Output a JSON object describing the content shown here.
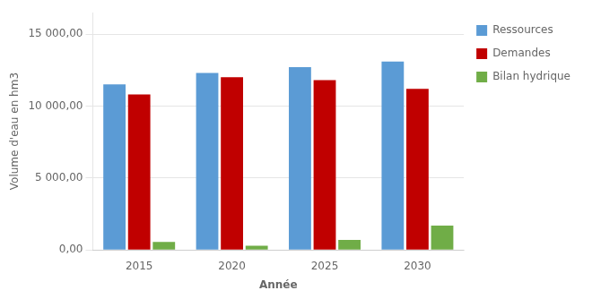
{
  "chart_data": {
    "type": "bar",
    "categories": [
      "2015",
      "2020",
      "2025",
      "2030"
    ],
    "series": [
      {
        "name": "Ressources",
        "color": "#5B9BD5",
        "values": [
          11500,
          12300,
          12700,
          13100
        ]
      },
      {
        "name": "Demandes",
        "color": "#C00000",
        "values": [
          10800,
          12000,
          11800,
          11200
        ]
      },
      {
        "name": "Bilan hydrique",
        "color": "#70AD47",
        "values": [
          550,
          300,
          700,
          1700
        ]
      }
    ],
    "xlabel": "Année",
    "ylabel": "Volume d'eau en hm3",
    "ylim": [
      0,
      16500
    ],
    "yticks": [
      {
        "value": 0,
        "label": "0,00"
      },
      {
        "value": 5000,
        "label": "5 000,00"
      },
      {
        "value": 10000,
        "label": "10 000,00"
      },
      {
        "value": 15000,
        "label": "15 000,00"
      }
    ],
    "grid": "y",
    "legend": "right"
  }
}
